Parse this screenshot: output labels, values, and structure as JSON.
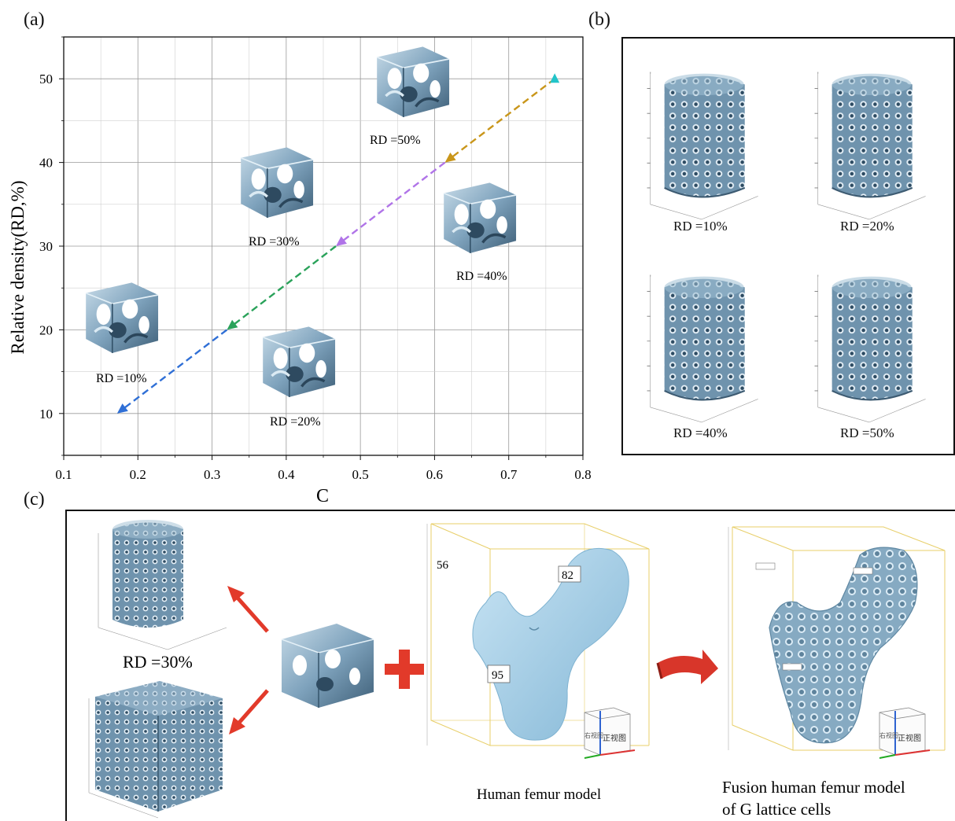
{
  "panels": {
    "a": "(a)",
    "b": "(b)",
    "c": "(c)"
  },
  "chart_data": {
    "type": "scatter",
    "xlabel": "C",
    "ylabel": "Relative density(RD,%)",
    "xlim": [
      0.1,
      0.8
    ],
    "ylim": [
      5,
      55
    ],
    "x_ticks": [
      "0.1",
      "0.2",
      "0.3",
      "0.4",
      "0.5",
      "0.6",
      "0.7",
      "0.8"
    ],
    "y_ticks": [
      "10",
      "20",
      "30",
      "40",
      "50"
    ],
    "grid": true,
    "points": [
      {
        "x": 0.172,
        "y": 10,
        "color": "#2f6fd6"
      },
      {
        "x": 0.32,
        "y": 20,
        "color": "#2aa25a"
      },
      {
        "x": 0.467,
        "y": 30,
        "color": "#b074e8"
      },
      {
        "x": 0.614,
        "y": 40,
        "color": "#c9961a"
      },
      {
        "x": 0.762,
        "y": 50,
        "color": "#22c4c9"
      }
    ],
    "segments": [
      {
        "from": 1,
        "to": 0,
        "color": "#2f6fd6"
      },
      {
        "from": 2,
        "to": 1,
        "color": "#2aa25a"
      },
      {
        "from": 3,
        "to": 2,
        "color": "#b074e8"
      },
      {
        "from": 4,
        "to": 3,
        "color": "#c9961a"
      }
    ],
    "annotations": [
      "RD =10%",
      "RD =20%",
      "RD =30%",
      "RD =40%",
      "RD =50%"
    ]
  },
  "panel_b": {
    "labels": [
      "RD =10%",
      "RD =20%",
      "RD =40%",
      "RD =50%"
    ]
  },
  "panel_c": {
    "rd_label": "RD =30%",
    "femur_caption": "Human femur model",
    "fusion_caption_line1": "Fusion human femur model",
    "fusion_caption_line2": "of G lattice cells",
    "femur_numbers": [
      "56",
      "82",
      "95"
    ],
    "viewcube_label": "正视图",
    "viewcube_side": "右视图"
  },
  "colors": {
    "lattice": "#7fa3bd",
    "femur": "#a9d2ea",
    "red_arrow": "#e23a2a",
    "box_line": "#e8cf6a"
  }
}
